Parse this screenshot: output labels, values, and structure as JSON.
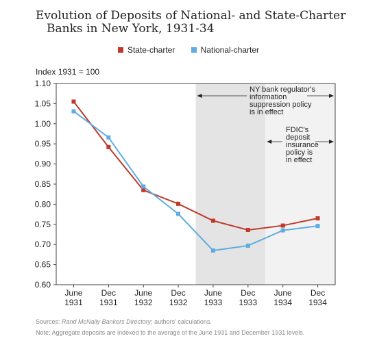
{
  "title_line1": "Evolution of Deposits of National- and State-Charter",
  "title_line2": "Banks in New York, 1931-34",
  "legend": [
    {
      "label": "State-charter",
      "color": "#c0392b"
    },
    {
      "label": "National-charter",
      "color": "#5dade2"
    }
  ],
  "ylabel": "Index 1931 = 100",
  "annotation_regulator": [
    "NY bank regulator's",
    "information",
    "suppression policy",
    "is in effect"
  ],
  "annotation_fdic": [
    "FDIC's",
    "deposit",
    "insurance",
    "policy is",
    "in effect"
  ],
  "source_italic": "Rand McNally Bankers Directory",
  "source_prefix": "Sources: ",
  "source_suffix": "; authors' calculations.",
  "note": "Note: Aggregate deposits are indexed to the average of the June 1931 and December 1931 levels.",
  "chart_data": {
    "type": "line",
    "categories": [
      "June 1931",
      "Dec 1931",
      "June 1932",
      "Dec 1932",
      "June 1933",
      "Dec 1933",
      "June 1934",
      "Dec 1934"
    ],
    "category_labels": [
      [
        "June",
        "1931"
      ],
      [
        "Dec",
        "1931"
      ],
      [
        "June",
        "1932"
      ],
      [
        "Dec",
        "1932"
      ],
      [
        "June",
        "1933"
      ],
      [
        "Dec",
        "1933"
      ],
      [
        "June",
        "1934"
      ],
      [
        "Dec",
        "1934"
      ]
    ],
    "series": [
      {
        "name": "State-charter",
        "color": "#c0392b",
        "values": [
          1.055,
          0.942,
          0.835,
          0.801,
          0.759,
          0.736,
          0.747,
          0.765
        ]
      },
      {
        "name": "National-charter",
        "color": "#5dade2",
        "values": [
          1.031,
          0.966,
          0.844,
          0.776,
          0.685,
          0.697,
          0.735,
          0.746
        ]
      }
    ],
    "yticks": [
      0.6,
      0.65,
      0.7,
      0.75,
      0.8,
      0.85,
      0.9,
      0.95,
      1.0,
      1.05,
      1.1
    ],
    "ytick_labels": [
      "0.60",
      "0.65",
      "0.70",
      "0.75",
      "0.80",
      "0.85",
      "0.90",
      "0.95",
      "1.00",
      "1.05",
      "1.10"
    ],
    "ylim": [
      0.6,
      1.1
    ],
    "shaded_regions": [
      {
        "from_index": 4,
        "to_index": 6,
        "label": "NY bank regulator's information suppression policy is in effect",
        "color": "#e4e4e4"
      },
      {
        "from_index": 6,
        "to_index": 7,
        "label": "FDIC's deposit insurance policy is in effect",
        "color": "#f2f2f2"
      }
    ],
    "grid": false,
    "legend_position": "top-center"
  }
}
